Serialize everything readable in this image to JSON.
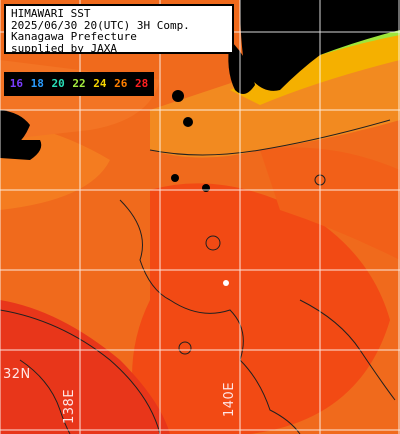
{
  "title": {
    "line1": "HIMAWARI SST",
    "line2": "2025/06/30 20(UTC) 3H Comp.",
    "line3": "Kanagawa Prefecture",
    "line4": "supplied by JAXA"
  },
  "legend": {
    "entries": [
      {
        "label": "16",
        "color": "#5a1fd6"
      },
      {
        "label": "18",
        "color": "#1e8fff"
      },
      {
        "label": "20",
        "color": "#20d6b0"
      },
      {
        "label": "22",
        "color": "#9ee63a"
      },
      {
        "label": "24",
        "color": "#f2d000"
      },
      {
        "label": "26",
        "color": "#ff7a00"
      },
      {
        "label": "28",
        "color": "#e01010"
      }
    ]
  },
  "axes": {
    "lat_label": "32N",
    "lon_label_1": "138E",
    "lon_label_2": "140E"
  },
  "colors": {
    "land": "#000000",
    "warm_sea": "#ff6418",
    "mid_sea": "#f07a1e",
    "hot_sea": "#f23c12",
    "cool_coast": "#f5b000",
    "grid": "#ffffff",
    "contour": "#202020"
  }
}
